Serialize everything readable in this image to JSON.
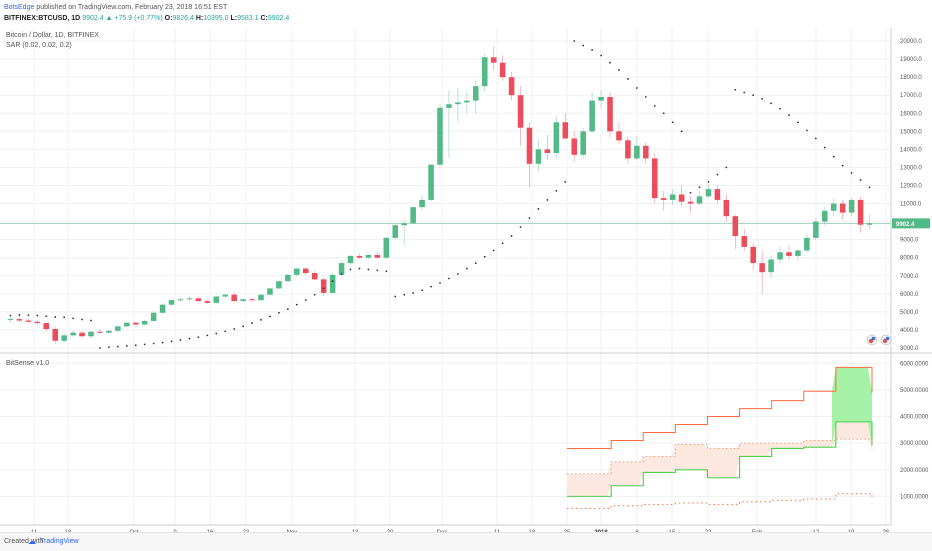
{
  "header": {
    "author": "BotsEdge",
    "published": "published on TradingView.com, February 23, 2018 16:51 EST",
    "symbol": "BITFINEX:BTCUSD, 1D",
    "last": "9902.4",
    "change_icon": "triangle-up-icon",
    "change": "+75.9 (+0.77%)",
    "o_label": "O:",
    "o": "9826.4",
    "h_label": "H:",
    "h": "10395.0",
    "l_label": "L:",
    "l": "9583.1",
    "c_label": "C:",
    "c": "9902.4"
  },
  "legend": {
    "title": "Bitcoin / Dollar, 1D, BITFINEX",
    "sar": "SAR (0.02, 0.02, 0.2)",
    "indicator": "BitSense v1.0"
  },
  "footer": {
    "created": "Created with",
    "logo_icon": "tradingview-logo-icon",
    "brand": "TradingView"
  },
  "colors": {
    "up": "#53b987",
    "down": "#eb4d5c",
    "sar": "#333333",
    "upper_line": "#ff6a3d",
    "lower_line": "#4cd04c",
    "green_fill": "#96f096",
    "pink_fill": "#fde5dd"
  },
  "chart_data": [
    {
      "type": "candlestick",
      "series_name": "BITFINEX:BTCUSD",
      "ylim": [
        3000,
        20500
      ],
      "y_ticks": [
        "20000.0",
        "19000.0",
        "18000.0",
        "17000.0",
        "16000.0",
        "15000.0",
        "14000.0",
        "13000.0",
        "12000.0",
        "11000.0",
        "10000.0",
        "9000.0",
        "8000.0",
        "7000.0",
        "6000.0",
        "5000.0",
        "4000.0",
        "3000.0"
      ],
      "last_price": 9902.4,
      "last_price_label": "9902.4",
      "candles": [
        [
          4550,
          4700,
          4420,
          4600
        ],
        [
          4600,
          4750,
          4450,
          4520
        ],
        [
          4520,
          4620,
          4380,
          4450
        ],
        [
          4450,
          4550,
          4300,
          4380
        ],
        [
          4380,
          4420,
          3950,
          4050
        ],
        [
          4050,
          4150,
          3250,
          3400
        ],
        [
          3400,
          3800,
          3300,
          3700
        ],
        [
          3700,
          3950,
          3600,
          3850
        ],
        [
          3850,
          3950,
          3600,
          3650
        ],
        [
          3650,
          3950,
          3550,
          3900
        ],
        [
          3900,
          4050,
          3800,
          3850
        ],
        [
          3850,
          4000,
          3750,
          3950
        ],
        [
          3950,
          4250,
          3900,
          4200
        ],
        [
          4200,
          4450,
          4150,
          4400
        ],
        [
          4400,
          4450,
          4250,
          4300
        ],
        [
          4300,
          4550,
          4250,
          4500
        ],
        [
          4500,
          5050,
          4450,
          4950
        ],
        [
          4950,
          5450,
          4900,
          5400
        ],
        [
          5400,
          5750,
          5300,
          5650
        ],
        [
          5650,
          5800,
          5550,
          5700
        ],
        [
          5700,
          5900,
          5600,
          5750
        ],
        [
          5750,
          5850,
          5550,
          5600
        ],
        [
          5600,
          5650,
          5450,
          5500
        ],
        [
          5500,
          5900,
          5450,
          5850
        ],
        [
          5850,
          6000,
          5750,
          5950
        ],
        [
          5950,
          6050,
          5550,
          5600
        ],
        [
          5600,
          5750,
          5550,
          5700
        ],
        [
          5700,
          5800,
          5550,
          5650
        ],
        [
          5650,
          6000,
          5600,
          5950
        ],
        [
          5950,
          6350,
          5900,
          6300
        ],
        [
          6300,
          6750,
          6250,
          6700
        ],
        [
          6700,
          7100,
          6650,
          7050
        ],
        [
          7050,
          7450,
          6950,
          7400
        ],
        [
          7400,
          7500,
          7050,
          7150
        ],
        [
          7150,
          7300,
          6750,
          6800
        ],
        [
          6800,
          6900,
          5900,
          6050
        ],
        [
          6050,
          7150,
          6000,
          7050
        ],
        [
          7050,
          7800,
          7000,
          7700
        ],
        [
          7700,
          8150,
          7650,
          8100
        ],
        [
          8100,
          8250,
          7950,
          8000
        ],
        [
          8000,
          8200,
          7900,
          8150
        ],
        [
          8150,
          8350,
          7950,
          8000
        ],
        [
          8000,
          9150,
          7950,
          9100
        ],
        [
          9100,
          9900,
          9000,
          9800
        ],
        [
          9800,
          10100,
          8700,
          9900
        ],
        [
          9900,
          10850,
          9850,
          10800
        ],
        [
          10800,
          11450,
          10600,
          11200
        ],
        [
          11200,
          13200,
          11100,
          13150
        ],
        [
          13150,
          16500,
          13000,
          16300
        ],
        [
          16300,
          17300,
          13500,
          16500
        ],
        [
          16500,
          17400,
          15500,
          16600
        ],
        [
          16600,
          17200,
          16000,
          16700
        ],
        [
          16700,
          17800,
          16000,
          17500
        ],
        [
          17500,
          19300,
          17200,
          19100
        ],
        [
          19100,
          19700,
          18400,
          18800
        ],
        [
          18800,
          19200,
          17800,
          18000
        ],
        [
          18000,
          18300,
          16700,
          17000
        ],
        [
          17000,
          17500,
          14200,
          15200
        ],
        [
          15200,
          15500,
          11900,
          13200
        ],
        [
          13200,
          14500,
          12800,
          14000
        ],
        [
          14000,
          14800,
          13400,
          13800
        ],
        [
          13800,
          15800,
          13500,
          15500
        ],
        [
          15500,
          16000,
          14600,
          14600
        ],
        [
          14600,
          15000,
          13300,
          13700
        ],
        [
          13700,
          15200,
          13500,
          15000
        ],
        [
          15000,
          17200,
          14900,
          16700
        ],
        [
          16700,
          17300,
          16300,
          16900
        ],
        [
          16900,
          17200,
          14700,
          15000
        ],
        [
          15000,
          15500,
          14300,
          14500
        ],
        [
          14500,
          14700,
          13200,
          13500
        ],
        [
          13500,
          14700,
          13400,
          14200
        ],
        [
          14200,
          14400,
          13200,
          13500
        ],
        [
          13500,
          13800,
          11000,
          11300
        ],
        [
          11300,
          11700,
          10600,
          11200
        ],
        [
          11200,
          11800,
          10900,
          11500
        ],
        [
          11500,
          12000,
          10800,
          11100
        ],
        [
          11100,
          11400,
          10500,
          11000
        ],
        [
          11000,
          11700,
          10900,
          11400
        ],
        [
          11400,
          12100,
          11300,
          11800
        ],
        [
          11800,
          12000,
          11000,
          11200
        ],
        [
          11200,
          11500,
          10000,
          10300
        ],
        [
          10300,
          10400,
          8500,
          9200
        ],
        [
          9200,
          9600,
          8400,
          8600
        ],
        [
          8600,
          8800,
          7300,
          7700
        ],
        [
          7700,
          8400,
          6000,
          7200
        ],
        [
          7200,
          8100,
          6900,
          7900
        ],
        [
          7900,
          8600,
          7700,
          8300
        ],
        [
          8300,
          8700,
          7900,
          8100
        ],
        [
          8100,
          8500,
          7800,
          8400
        ],
        [
          8400,
          9300,
          8300,
          9100
        ],
        [
          9100,
          10200,
          9000,
          10000
        ],
        [
          10000,
          10800,
          9800,
          10600
        ],
        [
          10600,
          11300,
          10300,
          11000
        ],
        [
          11000,
          11200,
          10100,
          10500
        ],
        [
          10500,
          11300,
          10300,
          11200
        ],
        [
          11200,
          11400,
          9400,
          9826.4
        ],
        [
          9826.4,
          10395,
          9583.1,
          9902.4
        ]
      ],
      "sar": [
        [
          4800,
          4830,
          4820,
          4800,
          4760,
          4720,
          4700,
          4640,
          4580,
          4520
        ],
        [
          3000,
          3050,
          3080,
          3110,
          3150,
          3200,
          3250,
          3300,
          3370,
          3440,
          3520,
          3600,
          3700,
          3800,
          3920,
          4050,
          4200,
          4380,
          4560,
          4750,
          4950,
          5150,
          5400,
          5650,
          5950,
          6300,
          6700,
          7100,
          7350,
          7400,
          7350,
          7300,
          7250
        ],
        [
          5850,
          5950,
          6050,
          6200,
          6400,
          6600,
          6850,
          7100,
          7400,
          7700,
          8050,
          8400,
          8800,
          9200,
          9700,
          10200,
          10700,
          11200,
          11700,
          12200
        ],
        [
          20000,
          19750,
          19500,
          19200,
          18800,
          18400,
          17900,
          17400,
          16900,
          16400,
          16000,
          15500,
          15000
        ],
        [
          11600,
          11900,
          12200,
          12600,
          13000
        ],
        [
          17300,
          17150,
          17000,
          16800,
          16550,
          16250,
          15900,
          15500,
          15050,
          14600,
          14100,
          13600,
          13100,
          12700,
          12300,
          11900,
          11500,
          11100,
          10700
        ],
        [
          6200,
          6300,
          6400,
          6550,
          6700,
          6900,
          7100,
          7350,
          7650,
          8000,
          8400,
          8850,
          9300,
          9750,
          10200
        ],
        [
          11300,
          11700
        ]
      ]
    },
    {
      "type": "line",
      "series_name": "BitSense v1.0",
      "ylim": [
        0,
        6200
      ],
      "y_ticks": [
        "6000.0000",
        "5000.0000",
        "4000.0000",
        "3000.0000",
        "2000.0000",
        "1000.0000"
      ],
      "x_ticks": [
        "11",
        "18",
        "Oct",
        "9",
        "16",
        "23",
        "Nov",
        "13",
        "20",
        "Dec",
        "11",
        "18",
        "25",
        "2018",
        "8",
        "15",
        "22",
        "Feb",
        "12",
        "19",
        "26"
      ],
      "upper": [
        2800,
        2800,
        2800,
        2800,
        2800,
        2800,
        2800,
        2800,
        2800,
        2800,
        2800,
        3100,
        3100,
        3100,
        3100,
        3100,
        3100,
        3100,
        3100,
        3400,
        3400,
        3400,
        3400,
        3400,
        3400,
        3400,
        3400,
        3700,
        3700,
        3700,
        3700,
        3700,
        3700,
        3700,
        3700,
        4000,
        4000,
        4000,
        4000,
        4000,
        4000,
        4000,
        4000,
        4300,
        4300,
        4300,
        4300,
        4300,
        4300,
        4300,
        4300,
        4600,
        4600,
        4600,
        4600,
        4600,
        4600,
        4600,
        4600,
        4950,
        4950,
        4950,
        4950,
        4950,
        4950,
        4950,
        4950,
        5850,
        5850,
        5850,
        5850,
        5850,
        5850,
        5850,
        5850,
        5850,
        4900
      ],
      "mid": [
        1850,
        1850,
        1850,
        1850,
        1850,
        1850,
        1850,
        1850,
        1850,
        1850,
        1850,
        2300,
        2300,
        2300,
        2300,
        2300,
        2300,
        2300,
        2300,
        2500,
        2500,
        2500,
        2500,
        2500,
        2500,
        2500,
        2500,
        2950,
        2950,
        2950,
        2950,
        2950,
        2950,
        2950,
        2950,
        2800,
        2800,
        2800,
        2800,
        2800,
        2800,
        2800,
        2800,
        3000,
        3000,
        3000,
        3000,
        3000,
        3000,
        3000,
        3000,
        3000,
        3000,
        3000,
        3000,
        3000,
        3000,
        3000,
        3000,
        3100,
        3100,
        3100,
        3100,
        3100,
        3100,
        3100,
        3100,
        3150,
        3150,
        3150,
        3150,
        3150,
        3150,
        3150,
        3150,
        3150,
        2800
      ],
      "lower": [
        1000,
        1000,
        1000,
        1000,
        1000,
        1000,
        1000,
        1000,
        1000,
        1000,
        1000,
        1400,
        1400,
        1400,
        1400,
        1400,
        1400,
        1400,
        1400,
        1900,
        1900,
        1900,
        1900,
        1900,
        1900,
        1900,
        1900,
        2000,
        2000,
        2000,
        2000,
        2000,
        2000,
        2000,
        2000,
        1700,
        1700,
        1700,
        1700,
        1700,
        1700,
        1700,
        1700,
        2500,
        2500,
        2500,
        2500,
        2500,
        2500,
        2500,
        2500,
        2800,
        2800,
        2800,
        2800,
        2800,
        2800,
        2800,
        2800,
        2850,
        2850,
        2850,
        2850,
        2850,
        2850,
        2850,
        2850,
        3800,
        3800,
        3800,
        3800,
        3800,
        3800,
        3800,
        3800,
        3800,
        2900
      ],
      "dotted_lower": [
        550,
        550,
        550,
        550,
        550,
        550,
        550,
        550,
        550,
        550,
        550,
        650,
        650,
        650,
        650,
        650,
        650,
        650,
        650,
        700,
        700,
        700,
        700,
        700,
        700,
        700,
        700,
        750,
        750,
        750,
        750,
        750,
        750,
        750,
        750,
        700,
        700,
        700,
        700,
        700,
        700,
        700,
        700,
        800,
        800,
        800,
        800,
        800,
        800,
        800,
        800,
        850,
        850,
        850,
        850,
        850,
        850,
        850,
        850,
        900,
        900,
        900,
        900,
        900,
        900,
        900,
        900,
        1100,
        1100,
        1100,
        1100,
        1100,
        1100,
        1100,
        1100,
        1100,
        900
      ]
    }
  ]
}
